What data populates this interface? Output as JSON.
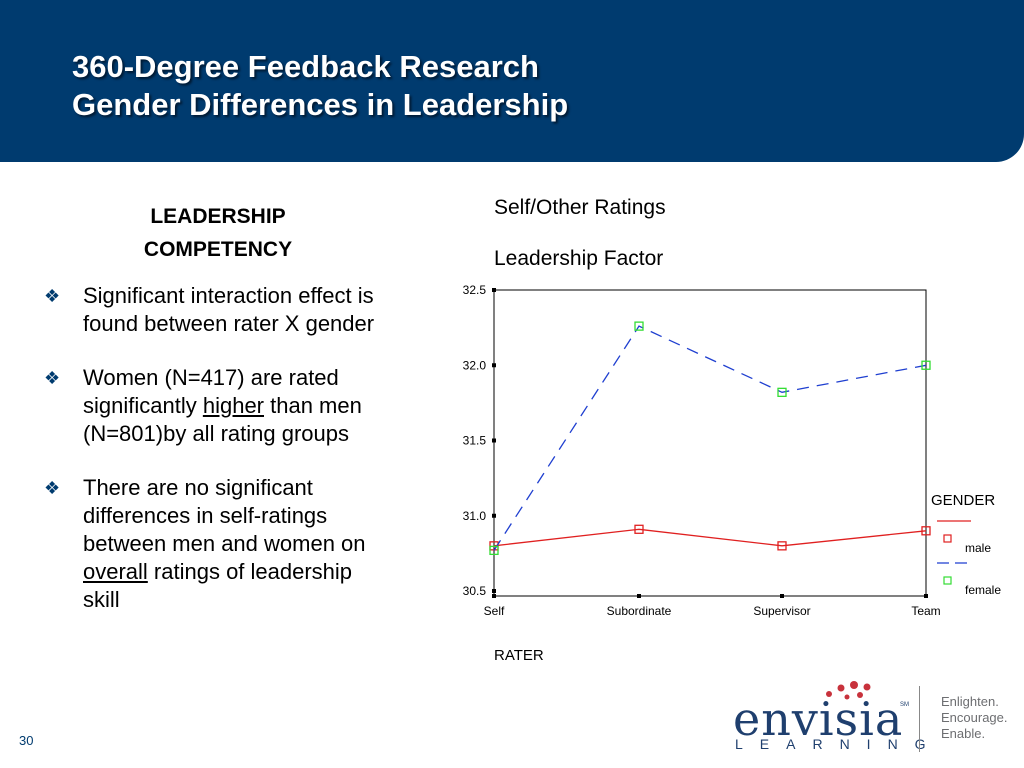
{
  "header": {
    "title_line1": "360-Degree Feedback Research",
    "title_line2": "Gender Differences in Leadership"
  },
  "left": {
    "heading_line1": "LEADERSHIP",
    "heading_line2": "COMPETENCY",
    "bullets": [
      {
        "before": "Significant interaction effect is found between rater X gender",
        "underlined": "",
        "after": ""
      },
      {
        "before": "Women (N=417) are rated significantly ",
        "underlined": "higher",
        "after": " than men (N=801)by all rating groups"
      },
      {
        "before": "There are no significant differences in self-ratings between men and women on ",
        "underlined": "overall",
        "after": " ratings of leadership skill"
      }
    ],
    "bullet_icon": "diamond-bullet-icon"
  },
  "chart_data": {
    "type": "line",
    "title_line1": "Self/Other Ratings",
    "title_line2": "Leadership Factor",
    "xlabel": "RATER",
    "ylabel": "",
    "categories": [
      "Self",
      "Subordinate",
      "Supervisor",
      "Team"
    ],
    "ylim": [
      30.5,
      32.5
    ],
    "yticks": [
      "30.5",
      "31.0",
      "31.5",
      "32.0",
      "32.5"
    ],
    "legend_title": "GENDER",
    "legend_position": "right",
    "grid": false,
    "series": [
      {
        "name": "male",
        "values": [
          30.8,
          30.91,
          30.8,
          30.9
        ],
        "color": "#e02020",
        "style": "solid",
        "marker_color": "#e02020"
      },
      {
        "name": "female",
        "values": [
          30.77,
          32.26,
          31.82,
          32.0
        ],
        "color": "#1f3fd0",
        "style": "dashed",
        "marker_color": "#33dd33"
      }
    ]
  },
  "footer": {
    "page_number": "30",
    "logo_word": "envisia",
    "logo_sm": "SM",
    "logo_sub": "LEARNING",
    "tagline": [
      "Enlighten.",
      "Encourage.",
      "Enable."
    ],
    "accent_color": "#003b6f",
    "dot_color": "#c8323c"
  }
}
